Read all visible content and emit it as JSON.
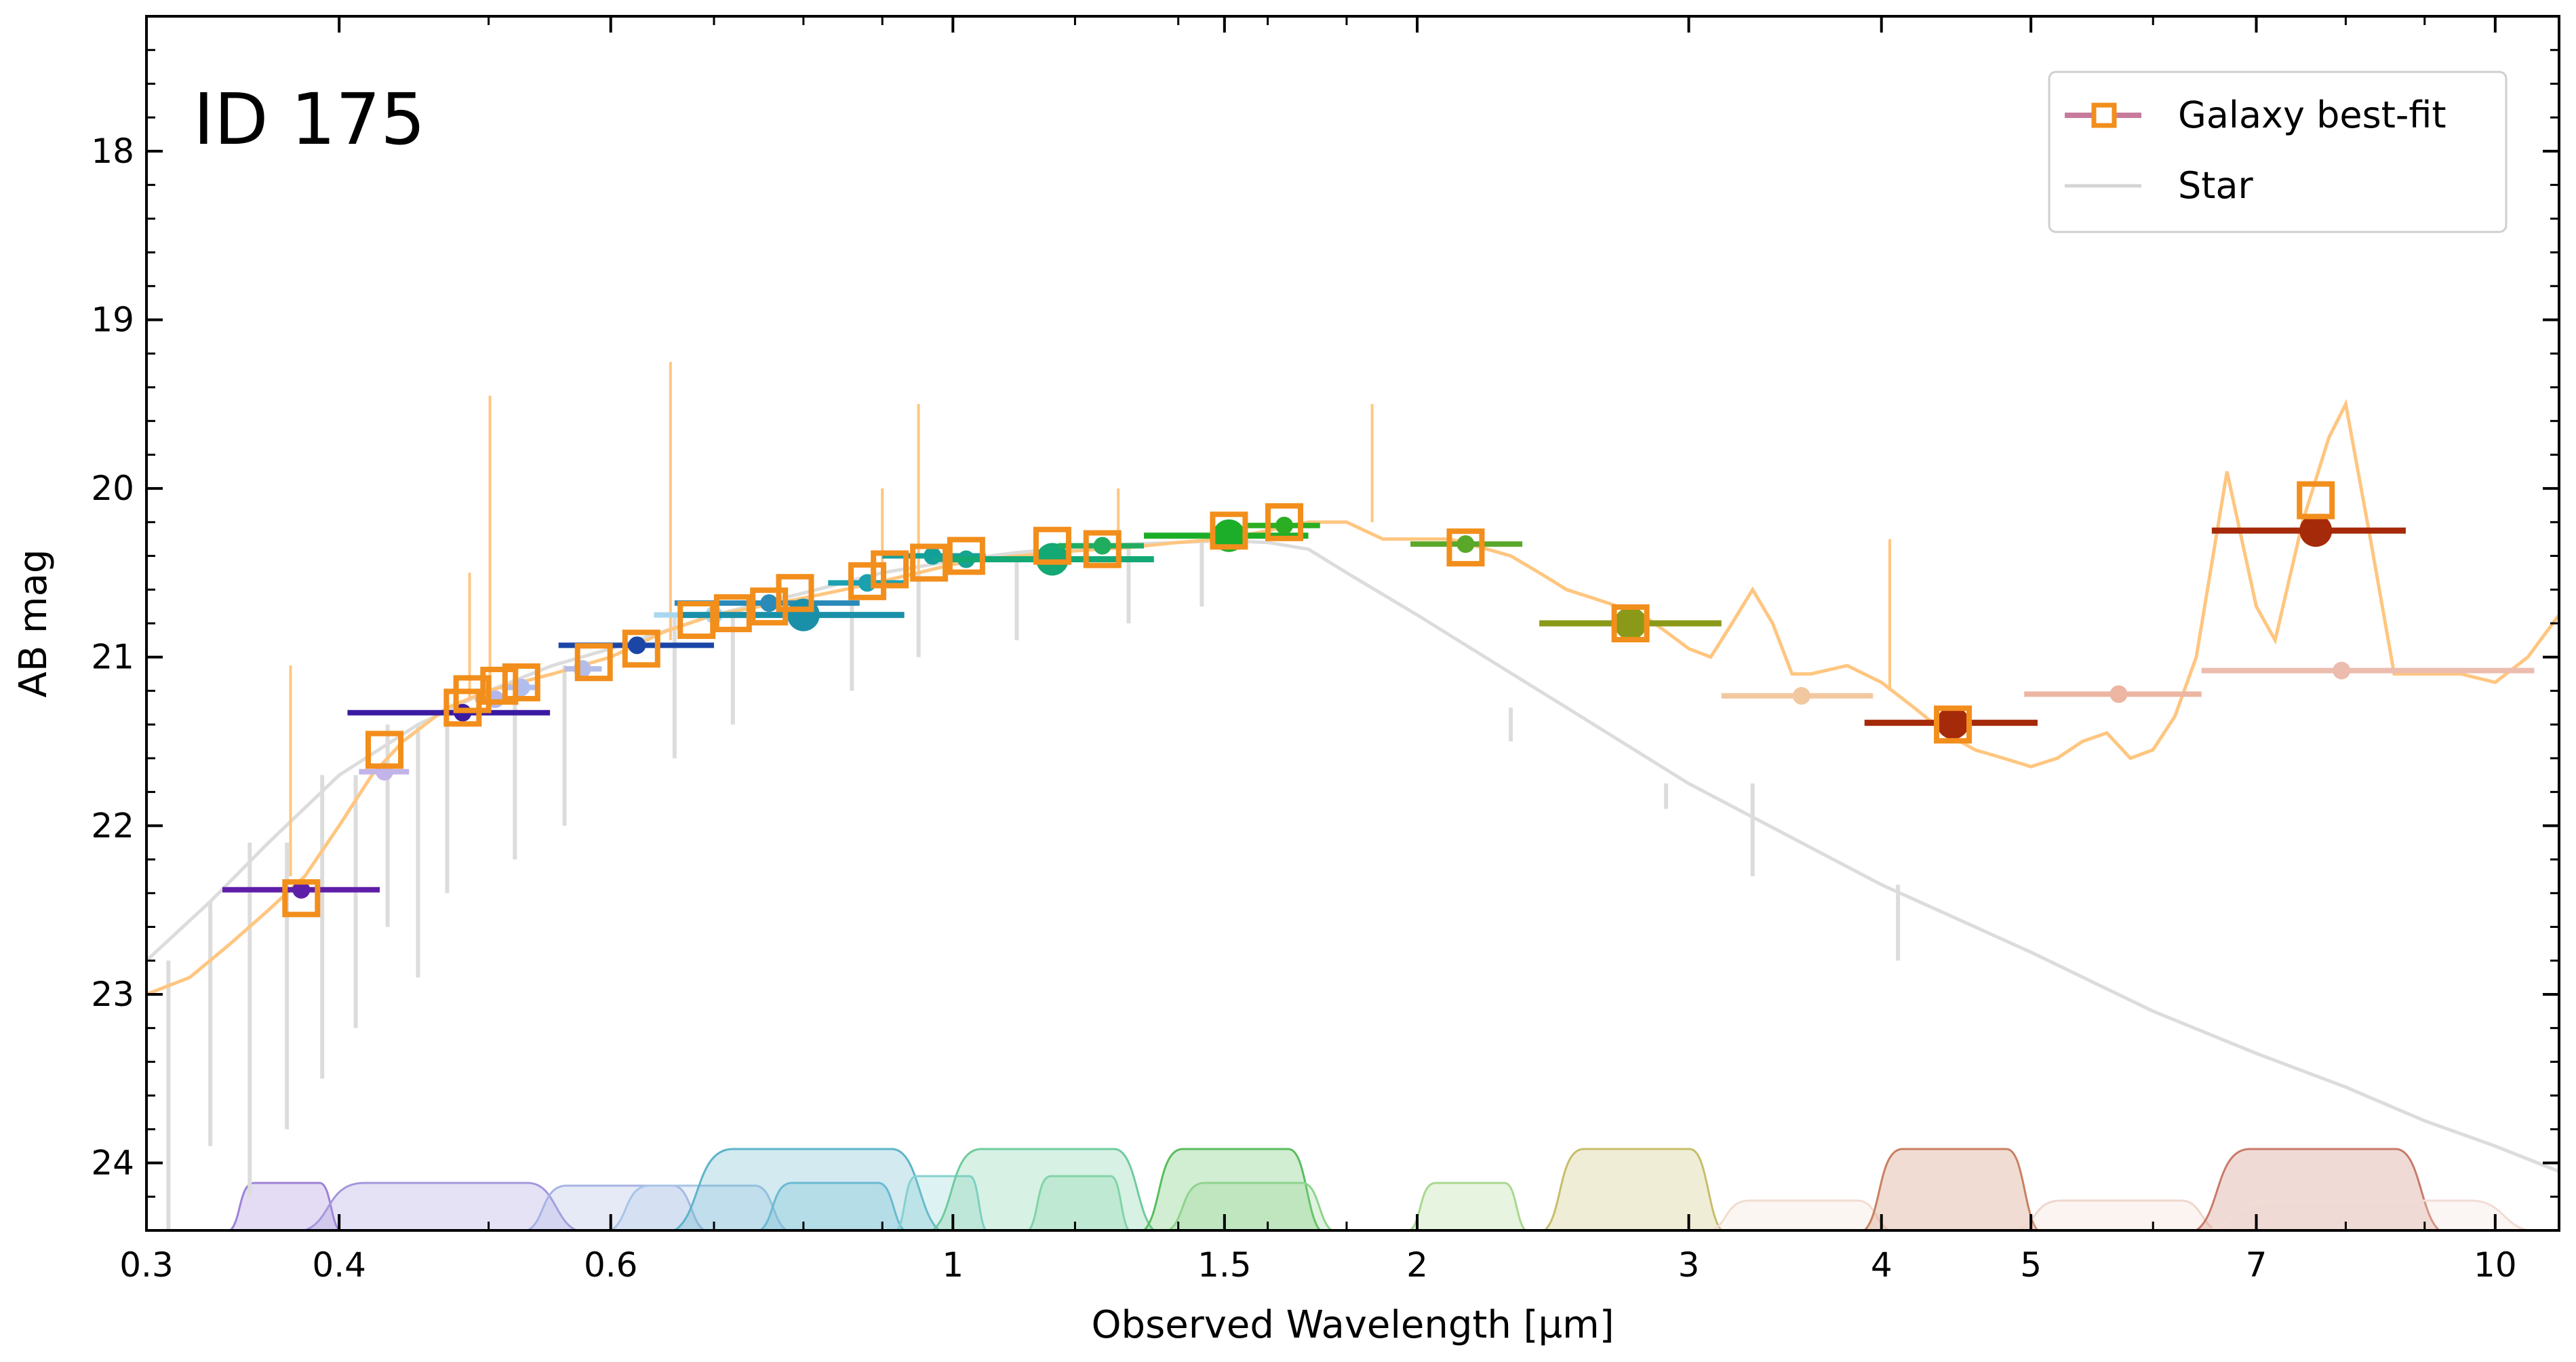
{
  "chart_data": {
    "type": "scatter",
    "title": "ID 175",
    "xlabel": "Observed Wavelength [µm]",
    "ylabel": "AB mag",
    "xscale": "log",
    "xlim": [
      0.3,
      11.0
    ],
    "ylim": [
      24.4,
      17.2
    ],
    "xticks": [
      0.3,
      0.4,
      0.6,
      1,
      1.5,
      2,
      3,
      4,
      5,
      7,
      10
    ],
    "xtick_labels": [
      "0.3",
      "0.4",
      "0.6",
      "1",
      "1.5",
      "2",
      "3",
      "4",
      "5",
      "7",
      "10"
    ],
    "yticks": [
      18,
      19,
      20,
      21,
      22,
      23,
      24
    ],
    "ytick_labels": [
      "18",
      "19",
      "20",
      "21",
      "22",
      "23",
      "24"
    ],
    "legend": {
      "position": "top-right",
      "entries": [
        {
          "label": "Galaxy best-fit",
          "color": "#f28e1c",
          "line_color": "#c77b9b"
        },
        {
          "label": "Star",
          "color": "#d4d4d4"
        }
      ]
    },
    "colors": {
      "galaxy_model": "#ffc680",
      "galaxy_boxes": "#f28e1c",
      "star": "#dcdcdc",
      "axes": "#000000"
    },
    "galaxy_model": {
      "x": [
        0.3,
        0.32,
        0.34,
        0.36,
        0.38,
        0.4,
        0.42,
        0.44,
        0.47,
        0.5,
        0.55,
        0.6,
        0.65,
        0.7,
        0.75,
        0.8,
        0.85,
        0.9,
        0.95,
        1.0,
        1.05,
        1.1,
        1.2,
        1.3,
        1.4,
        1.5,
        1.6,
        1.7,
        1.8,
        1.9,
        2.0,
        2.1,
        2.2,
        2.3,
        2.4,
        2.5,
        2.6,
        2.7,
        2.8,
        2.9,
        3.0,
        3.1,
        3.2,
        3.3,
        3.4,
        3.5,
        3.6,
        3.8,
        4.0,
        4.2,
        4.4,
        4.6,
        4.8,
        5.0,
        5.2,
        5.4,
        5.6,
        5.8,
        6.0,
        6.2,
        6.4,
        6.7,
        7.0,
        7.2,
        7.5,
        7.8,
        8.0,
        8.3,
        8.6,
        9.0,
        9.5,
        10.0,
        10.5,
        11.0
      ],
      "y": [
        23.0,
        22.9,
        22.7,
        22.5,
        22.3,
        22.0,
        21.7,
        21.5,
        21.3,
        21.2,
        21.1,
        21.0,
        20.85,
        20.75,
        20.7,
        20.65,
        20.6,
        20.55,
        20.5,
        20.45,
        20.42,
        20.4,
        20.37,
        20.35,
        20.32,
        20.3,
        20.25,
        20.2,
        20.2,
        20.3,
        20.3,
        20.3,
        20.35,
        20.4,
        20.5,
        20.6,
        20.65,
        20.7,
        20.75,
        20.85,
        20.95,
        21.0,
        20.8,
        20.6,
        20.8,
        21.1,
        21.1,
        21.05,
        21.15,
        21.3,
        21.45,
        21.55,
        21.6,
        21.65,
        21.6,
        21.5,
        21.45,
        21.6,
        21.55,
        21.35,
        21.0,
        19.9,
        20.7,
        20.9,
        20.2,
        19.7,
        19.5,
        20.3,
        21.1,
        21.1,
        21.1,
        21.15,
        21.0,
        20.75
      ],
      "emission_lines": [
        {
          "x": 0.372,
          "top": 21.05,
          "base": 22.3
        },
        {
          "x": 0.486,
          "top": 20.5,
          "base": 21.25
        },
        {
          "x": 0.501,
          "top": 19.45,
          "base": 21.2
        },
        {
          "x": 0.656,
          "top": 19.25,
          "base": 20.9
        },
        {
          "x": 0.9,
          "top": 20.0,
          "base": 20.55
        },
        {
          "x": 0.95,
          "top": 19.5,
          "base": 20.5
        },
        {
          "x": 1.28,
          "top": 20.0,
          "base": 20.35
        },
        {
          "x": 1.87,
          "top": 19.5,
          "base": 20.2
        },
        {
          "x": 4.05,
          "top": 20.3,
          "base": 21.2
        }
      ]
    },
    "star_model": {
      "x": [
        0.3,
        0.33,
        0.36,
        0.4,
        0.45,
        0.5,
        0.55,
        0.6,
        0.7,
        0.8,
        0.9,
        1.0,
        1.1,
        1.2,
        1.3,
        1.4,
        1.5,
        1.6,
        1.7,
        1.8,
        2.0,
        2.5,
        3.0,
        4.0,
        5.0,
        6.0,
        7.0,
        8.0,
        9.0,
        10.0,
        11.0
      ],
      "y": [
        22.8,
        22.45,
        22.1,
        21.7,
        21.4,
        21.2,
        21.05,
        20.95,
        20.75,
        20.62,
        20.5,
        20.43,
        20.38,
        20.35,
        20.33,
        20.32,
        20.31,
        20.32,
        20.36,
        20.5,
        20.75,
        21.3,
        21.75,
        22.35,
        22.75,
        23.1,
        23.35,
        23.55,
        23.75,
        23.9,
        24.05
      ]
    },
    "galaxy_bestfit_boxes": [
      {
        "x": 0.378,
        "mag": 22.43
      },
      {
        "x": 0.428,
        "mag": 21.55
      },
      {
        "x": 0.481,
        "mag": 21.3
      },
      {
        "x": 0.488,
        "mag": 21.22
      },
      {
        "x": 0.508,
        "mag": 21.17
      },
      {
        "x": 0.525,
        "mag": 21.15
      },
      {
        "x": 0.585,
        "mag": 21.03
      },
      {
        "x": 0.628,
        "mag": 20.95
      },
      {
        "x": 0.682,
        "mag": 20.78
      },
      {
        "x": 0.72,
        "mag": 20.74
      },
      {
        "x": 0.76,
        "mag": 20.7
      },
      {
        "x": 0.79,
        "mag": 20.62
      },
      {
        "x": 0.88,
        "mag": 20.55
      },
      {
        "x": 0.91,
        "mag": 20.48
      },
      {
        "x": 0.965,
        "mag": 20.44
      },
      {
        "x": 1.02,
        "mag": 20.4
      },
      {
        "x": 1.16,
        "mag": 20.34
      },
      {
        "x": 1.25,
        "mag": 20.36
      },
      {
        "x": 1.51,
        "mag": 20.25
      },
      {
        "x": 1.64,
        "mag": 20.2
      },
      {
        "x": 2.15,
        "mag": 20.35
      },
      {
        "x": 2.75,
        "mag": 20.8
      },
      {
        "x": 4.45,
        "mag": 21.4
      },
      {
        "x": 7.65,
        "mag": 20.07
      }
    ],
    "photometry": [
      {
        "x": 0.378,
        "mag": 22.38,
        "xlo": 0.336,
        "xhi": 0.425,
        "color": "#5e1fa8",
        "size": "s"
      },
      {
        "x": 0.428,
        "mag": 21.68,
        "xlo": 0.412,
        "xhi": 0.444,
        "color": "#c2b4e8",
        "size": "s"
      },
      {
        "x": 0.481,
        "mag": 21.33,
        "xlo": 0.405,
        "xhi": 0.548,
        "color": "#3a1aa0",
        "size": "s"
      },
      {
        "x": 0.505,
        "mag": 21.25,
        "xlo": 0.49,
        "xhi": 0.52,
        "color": "#b3b7ec",
        "size": "s"
      },
      {
        "x": 0.525,
        "mag": 21.18,
        "xlo": 0.51,
        "xhi": 0.54,
        "color": "#b0bff0",
        "size": "s"
      },
      {
        "x": 0.575,
        "mag": 21.07,
        "xlo": 0.56,
        "xhi": 0.592,
        "color": "#b3bde8",
        "size": "s"
      },
      {
        "x": 0.624,
        "mag": 20.93,
        "xlo": 0.555,
        "xhi": 0.7,
        "color": "#1a46a6",
        "size": "s"
      },
      {
        "x": 0.7,
        "mag": 20.75,
        "xlo": 0.64,
        "xhi": 0.77,
        "color": "#a9d7ef",
        "size": "s"
      },
      {
        "x": 0.76,
        "mag": 20.68,
        "xlo": 0.66,
        "xhi": 0.87,
        "color": "#2a8ab8",
        "size": "s"
      },
      {
        "x": 0.8,
        "mag": 20.75,
        "xlo": 0.665,
        "xhi": 0.93,
        "color": "#1a90a8",
        "size": "l"
      },
      {
        "x": 0.88,
        "mag": 20.56,
        "xlo": 0.83,
        "xhi": 0.935,
        "color": "#1aa0b0",
        "size": "s"
      },
      {
        "x": 0.97,
        "mag": 20.4,
        "xlo": 0.9,
        "xhi": 1.05,
        "color": "#14a09a",
        "size": "s"
      },
      {
        "x": 1.02,
        "mag": 20.42,
        "xlo": 0.97,
        "xhi": 1.07,
        "color": "#16a390",
        "size": "s"
      },
      {
        "x": 1.16,
        "mag": 20.42,
        "xlo": 0.99,
        "xhi": 1.35,
        "color": "#14a874",
        "size": "l"
      },
      {
        "x": 1.25,
        "mag": 20.34,
        "xlo": 1.17,
        "xhi": 1.33,
        "color": "#20ad60",
        "size": "s"
      },
      {
        "x": 1.51,
        "mag": 20.28,
        "xlo": 1.33,
        "xhi": 1.7,
        "color": "#1cae28",
        "size": "l"
      },
      {
        "x": 1.64,
        "mag": 20.22,
        "xlo": 1.55,
        "xhi": 1.73,
        "color": "#2cae22",
        "size": "s"
      },
      {
        "x": 2.15,
        "mag": 20.33,
        "xlo": 1.98,
        "xhi": 2.34,
        "color": "#5aa82a",
        "size": "s"
      },
      {
        "x": 2.75,
        "mag": 20.8,
        "xlo": 2.4,
        "xhi": 3.15,
        "color": "#8a9a18",
        "size": "l"
      },
      {
        "x": 3.55,
        "mag": 21.23,
        "xlo": 3.15,
        "xhi": 3.95,
        "color": "#f1c8a0",
        "size": "s"
      },
      {
        "x": 4.45,
        "mag": 21.39,
        "xlo": 3.9,
        "xhi": 5.05,
        "color": "#a52a0a",
        "size": "l"
      },
      {
        "x": 5.7,
        "mag": 21.22,
        "xlo": 4.95,
        "xhi": 6.45,
        "color": "#ecb6a2",
        "size": "s"
      },
      {
        "x": 7.65,
        "mag": 20.25,
        "xlo": 6.55,
        "xhi": 8.75,
        "color": "#a52a0a",
        "size": "l"
      },
      {
        "x": 7.95,
        "mag": 21.08,
        "xlo": 6.45,
        "xhi": 10.6,
        "color": "#ecbcae",
        "size": "s"
      }
    ],
    "filter_curves": [
      {
        "lo": 0.34,
        "hi": 0.4,
        "peak": 0.35,
        "color": "#9e82d6"
      },
      {
        "lo": 0.38,
        "hi": 0.57,
        "peak": 0.35,
        "color": "#a497dd"
      },
      {
        "lo": 0.53,
        "hi": 0.69,
        "peak": 0.33,
        "color": "#a7b4e3"
      },
      {
        "lo": 0.6,
        "hi": 0.78,
        "peak": 0.33,
        "color": "#a9c4e6"
      },
      {
        "lo": 0.66,
        "hi": 0.98,
        "peak": 0.6,
        "color": "#5db4c8"
      },
      {
        "lo": 0.75,
        "hi": 0.93,
        "peak": 0.35,
        "color": "#6bbad2"
      },
      {
        "lo": 0.92,
        "hi": 1.05,
        "peak": 0.4,
        "color": "#85d1cf"
      },
      {
        "lo": 0.97,
        "hi": 1.35,
        "peak": 0.6,
        "color": "#6fcb9e"
      },
      {
        "lo": 1.12,
        "hi": 1.3,
        "peak": 0.4,
        "color": "#82d4a8"
      },
      {
        "lo": 1.33,
        "hi": 1.73,
        "peak": 0.6,
        "color": "#59bd5d"
      },
      {
        "lo": 1.38,
        "hi": 1.76,
        "peak": 0.35,
        "color": "#8fd48f"
      },
      {
        "lo": 1.98,
        "hi": 2.35,
        "peak": 0.35,
        "color": "#a8d88e"
      },
      {
        "lo": 2.42,
        "hi": 3.15,
        "peak": 0.6,
        "color": "#c6be6a"
      },
      {
        "lo": 3.1,
        "hi": 4.05,
        "peak": 0.22,
        "color": "#f1ddd0"
      },
      {
        "lo": 3.9,
        "hi": 5.05,
        "peak": 0.6,
        "color": "#c98060"
      },
      {
        "lo": 4.9,
        "hi": 6.6,
        "peak": 0.22,
        "color": "#f0d6cc"
      },
      {
        "lo": 6.4,
        "hi": 9.2,
        "peak": 0.6,
        "color": "#c97a6a"
      },
      {
        "lo": 6.5,
        "hi": 10.5,
        "peak": 0.22,
        "color": "#f2dcd4"
      }
    ]
  }
}
